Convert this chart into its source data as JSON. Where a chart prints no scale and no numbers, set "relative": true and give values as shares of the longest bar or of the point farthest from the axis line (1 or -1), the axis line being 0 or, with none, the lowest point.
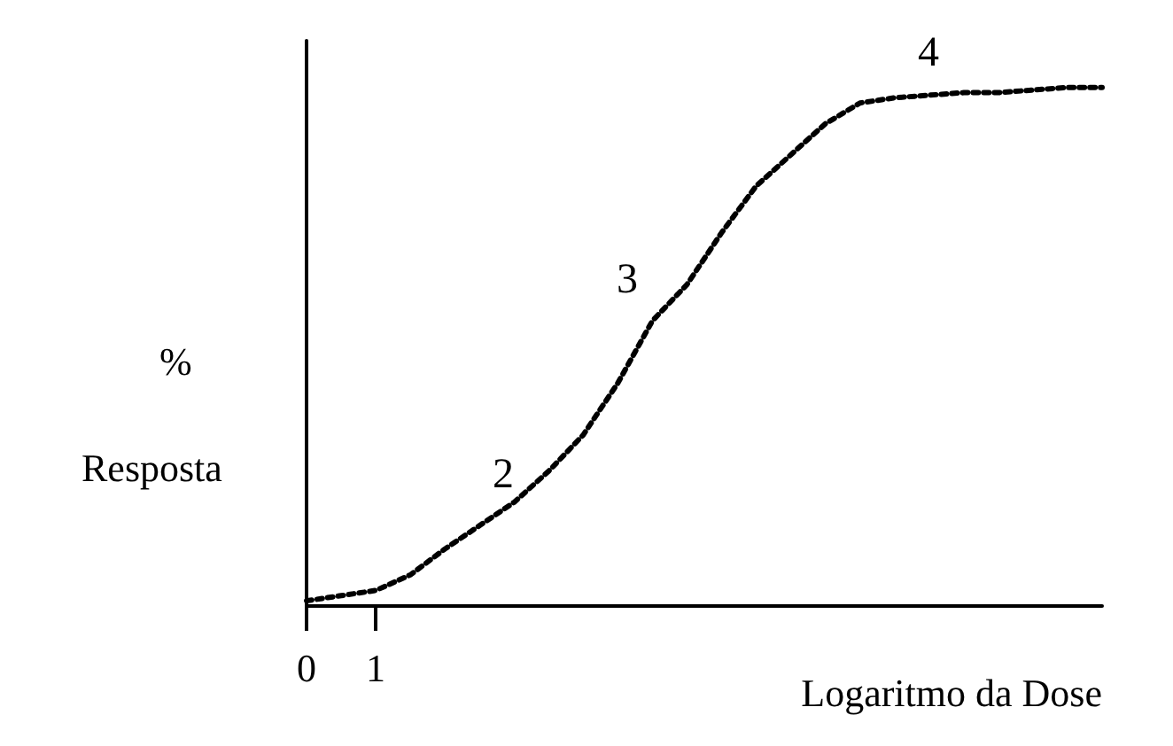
{
  "chart_data": {
    "type": "line",
    "relative": true,
    "xlabel": "Logaritmo da Dose",
    "ylabel": "% Resposta",
    "categories": [
      "0",
      null,
      "1",
      null,
      null,
      null,
      null,
      null,
      null,
      null,
      null,
      null,
      null,
      null,
      null,
      null,
      null,
      null,
      null,
      null,
      null,
      null,
      null,
      null
    ],
    "series": [
      {
        "color": "#000000",
        "values": [
          0.01,
          0.02,
          0.03,
          0.06,
          0.11,
          0.155,
          0.2,
          0.26,
          0.33,
          0.43,
          0.55,
          0.62,
          0.72,
          0.81,
          0.87,
          0.93,
          0.97,
          0.98,
          0.985,
          0.99,
          0.99,
          0.995,
          1,
          1
        ]
      }
    ],
    "annotations": [
      "2",
      "3",
      "4"
    ],
    "grid": false,
    "marker": "none",
    "line_style": "dotted"
  }
}
